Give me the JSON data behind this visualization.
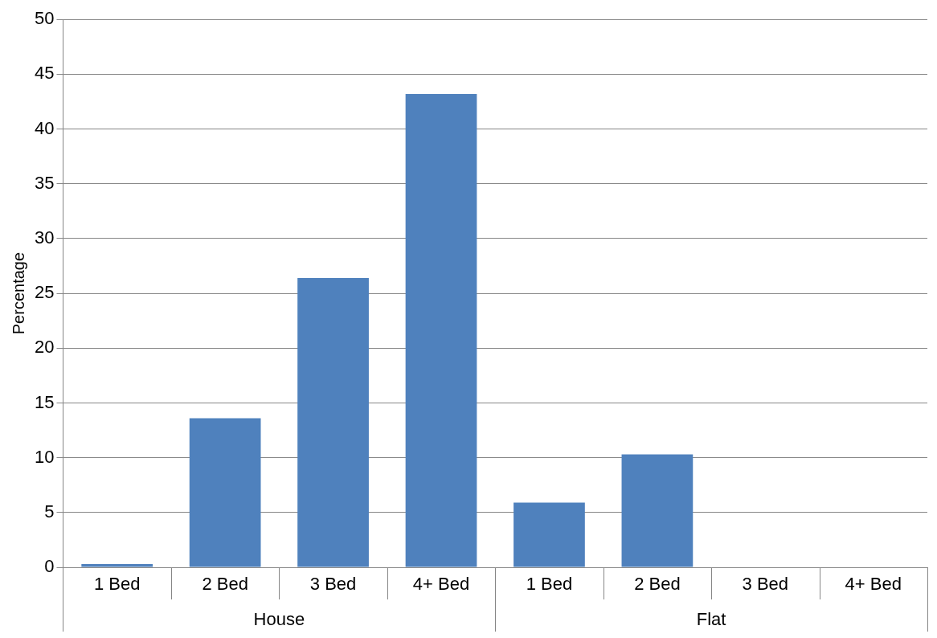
{
  "chart_data": {
    "type": "bar",
    "ylabel": "Percentage",
    "categories": [
      "1 Bed",
      "2 Bed",
      "3 Bed",
      "4+ Bed",
      "1 Bed",
      "2 Bed",
      "3 Bed",
      "4+ Bed"
    ],
    "values": [
      0.3,
      13.6,
      26.4,
      43.2,
      5.9,
      10.3,
      0,
      0
    ],
    "color": "#4f81bd",
    "ylim": [
      0,
      50
    ],
    "yticks": [
      0,
      5,
      10,
      15,
      20,
      25,
      30,
      35,
      40,
      45,
      50
    ],
    "grid": "y",
    "annotations": [
      "House",
      "Flat"
    ]
  }
}
